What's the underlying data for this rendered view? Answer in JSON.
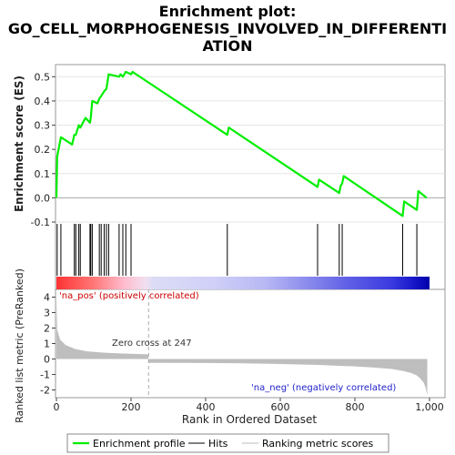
{
  "title_lines": [
    "Enrichment plot:",
    "GO_CELL_MORPHOGENESIS_INVOLVED_IN_DIFFERENTI",
    "ATION"
  ],
  "colors": {
    "es_line": "#00ee00",
    "hits": "#000000",
    "metric_fill": "#bebebe",
    "pos_label": "#cc0000",
    "neg_label": "#2222cc"
  },
  "chart_data": [
    {
      "type": "line",
      "name": "enrichment-profile",
      "ylabel": "Enrichment score (ES)",
      "xlim": [
        0,
        1000
      ],
      "ylim": [
        -0.1,
        0.55
      ],
      "yticks": [
        -0.1,
        0.0,
        0.1,
        0.2,
        0.3,
        0.4,
        0.5
      ],
      "ytick_labels": [
        "-0.1",
        "0.0",
        "0.1",
        "0.2",
        "0.3",
        "0.4",
        "0.5"
      ],
      "x": [
        0,
        2,
        12,
        42,
        48,
        52,
        60,
        64,
        78,
        90,
        92,
        96,
        110,
        115,
        120,
        128,
        134,
        140,
        168,
        172,
        178,
        186,
        200,
        204,
        458,
        462,
        700,
        704,
        758,
        762,
        766,
        770,
        928,
        932,
        966,
        970,
        992
      ],
      "y": [
        0.0,
        0.17,
        0.25,
        0.22,
        0.26,
        0.26,
        0.3,
        0.29,
        0.33,
        0.31,
        0.33,
        0.4,
        0.39,
        0.41,
        0.42,
        0.44,
        0.45,
        0.51,
        0.5,
        0.51,
        0.5,
        0.52,
        0.51,
        0.52,
        0.26,
        0.29,
        0.045,
        0.075,
        0.02,
        0.05,
        0.06,
        0.09,
        -0.075,
        -0.015,
        -0.05,
        0.028,
        0.0
      ]
    },
    {
      "type": "hits",
      "name": "gene-set-hits",
      "x": [
        2,
        12,
        48,
        52,
        60,
        64,
        90,
        92,
        96,
        115,
        120,
        128,
        134,
        140,
        168,
        178,
        186,
        200,
        458,
        700,
        758,
        766,
        928,
        966
      ]
    },
    {
      "type": "area",
      "name": "ranked-list-metric",
      "ylabel": "Ranked list metric (PreRanked)",
      "xlabel": "Rank in Ordered Dataset",
      "xlim": [
        0,
        1000
      ],
      "ylim": [
        -2.5,
        4.5
      ],
      "xticks": [
        0,
        200,
        400,
        600,
        800,
        1000
      ],
      "xtick_labels": [
        "0",
        "200",
        "400",
        "600",
        "800",
        "1,000"
      ],
      "yticks": [
        -2,
        -1,
        0,
        1,
        2,
        3,
        4
      ],
      "ytick_labels": [
        "-2",
        "-1",
        "0",
        "1",
        "2",
        "3",
        "4"
      ],
      "x": [
        0,
        2,
        10,
        25,
        50,
        80,
        120,
        170,
        246,
        247,
        300,
        400,
        500,
        600,
        700,
        800,
        850,
        900,
        930,
        950,
        965,
        975,
        985,
        990,
        994
      ],
      "y": [
        4.0,
        1.9,
        1.25,
        0.9,
        0.65,
        0.5,
        0.42,
        0.36,
        0.3,
        -0.25,
        -0.25,
        -0.26,
        -0.28,
        -0.32,
        -0.38,
        -0.48,
        -0.55,
        -0.65,
        -0.78,
        -0.9,
        -1.05,
        -1.25,
        -1.55,
        -1.9,
        -2.35
      ],
      "zero_cross_label": "Zero cross at 247",
      "zero_cross": 247,
      "pos_label": "'na_pos' (positively correlated)",
      "neg_label": "'na_neg' (negatively correlated)"
    }
  ],
  "legend": {
    "items": [
      "Enrichment profile",
      "Hits",
      "Ranking metric scores"
    ]
  }
}
